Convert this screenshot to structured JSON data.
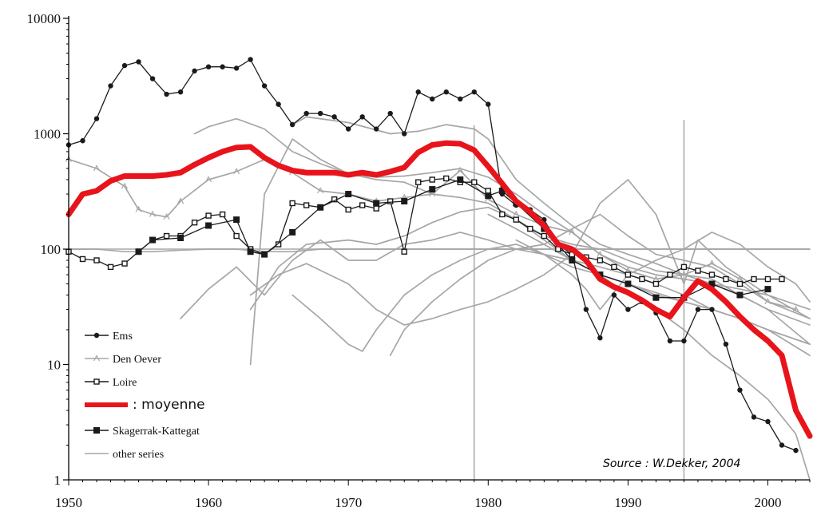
{
  "chart_data": {
    "type": "line",
    "x_scale": "linear",
    "y_scale": "log",
    "xlim": [
      1950,
      2003
    ],
    "ylim": [
      1,
      10000
    ],
    "x_ticks": [
      "1950",
      "1960",
      "1970",
      "1980",
      "1990",
      "2000"
    ],
    "y_ticks": [
      "1",
      "10",
      "100",
      "1000",
      "10000"
    ],
    "reference_lines": {
      "horizontal_y": 100,
      "vertical_x": [
        1979,
        1994
      ]
    },
    "colors": {
      "mean": "#e8141b",
      "grey": "#a6a6a6",
      "dark": "#1a1a1a",
      "axis": "#000000"
    },
    "source": "Source : W.Dekker, 2004",
    "legend": [
      {
        "label": "Ems",
        "marker": "dot",
        "style": "dark"
      },
      {
        "label": "Den Oever",
        "marker": "triangle",
        "style": "grey"
      },
      {
        "label": "Loire",
        "marker": "open-square",
        "style": "dark"
      },
      {
        "label": ": moyenne",
        "marker": "none",
        "style": "mean"
      },
      {
        "label": "Skagerrak-Kattegat",
        "marker": "filled-square",
        "style": "dark"
      },
      {
        "label": "other series",
        "marker": "none",
        "style": "grey"
      }
    ],
    "series": [
      {
        "name": "Ems",
        "marker": "dot",
        "x": [
          1950,
          1951,
          1952,
          1953,
          1954,
          1955,
          1956,
          1957,
          1958,
          1959,
          1960,
          1961,
          1962,
          1963,
          1964,
          1965,
          1966,
          1967,
          1968,
          1969,
          1970,
          1971,
          1972,
          1973,
          1974,
          1975,
          1976,
          1977,
          1978,
          1979,
          1980,
          1981,
          1982,
          1983,
          1984,
          1985,
          1986,
          1987,
          1988,
          1989,
          1990,
          1991,
          1992,
          1993,
          1994,
          1995,
          1996,
          1997,
          1998,
          1999,
          2000,
          2001,
          2002
        ],
        "y": [
          800,
          870,
          1350,
          2600,
          3900,
          4200,
          3000,
          2200,
          2300,
          3500,
          3800,
          3800,
          3700,
          4400,
          2600,
          1800,
          1200,
          1500,
          1500,
          1400,
          1100,
          1400,
          1100,
          1500,
          1000,
          2300,
          2000,
          2300,
          2000,
          2300,
          1800,
          300,
          240,
          220,
          180,
          110,
          90,
          30,
          17,
          40,
          30,
          35,
          28,
          16,
          16,
          30,
          30,
          15,
          6,
          3.5,
          3.2,
          2,
          1.8
        ]
      },
      {
        "name": "Den Oever",
        "marker": "triangle",
        "x": [
          1950,
          1952,
          1954,
          1955,
          1956,
          1957,
          1958,
          1960,
          1962,
          1964,
          1966,
          1968,
          1970,
          1972,
          1974,
          1976,
          1978,
          1980,
          1982,
          1984,
          1986,
          1988,
          1990,
          1992,
          1994,
          1996,
          1998,
          2000,
          2002
        ],
        "y": [
          600,
          500,
          350,
          220,
          200,
          190,
          260,
          400,
          470,
          600,
          460,
          320,
          300,
          260,
          280,
          300,
          480,
          270,
          200,
          160,
          140,
          90,
          65,
          55,
          60,
          75,
          55,
          35,
          30
        ]
      },
      {
        "name": "Loire",
        "marker": "open-square",
        "x": [
          1950,
          1951,
          1952,
          1953,
          1954,
          1955,
          1956,
          1957,
          1958,
          1959,
          1960,
          1961,
          1962,
          1963,
          1964,
          1965,
          1966,
          1967,
          1968,
          1969,
          1970,
          1971,
          1972,
          1973,
          1974,
          1975,
          1976,
          1977,
          1978,
          1979,
          1980,
          1981,
          1982,
          1983,
          1984,
          1985,
          1986,
          1987,
          1988,
          1989,
          1990,
          1991,
          1992,
          1993,
          1994,
          1995,
          1996,
          1997,
          1998,
          1999,
          2000,
          2001
        ],
        "y": [
          95,
          82,
          80,
          70,
          75,
          95,
          120,
          130,
          130,
          170,
          195,
          200,
          130,
          100,
          90,
          110,
          250,
          240,
          230,
          270,
          220,
          240,
          225,
          260,
          95,
          380,
          400,
          410,
          380,
          380,
          320,
          200,
          180,
          150,
          130,
          100,
          90,
          85,
          80,
          70,
          60,
          55,
          50,
          60,
          70,
          65,
          60,
          55,
          50,
          55,
          55,
          55
        ]
      },
      {
        "name": "moyenne",
        "marker": "none",
        "x": [
          1950,
          1951,
          1952,
          1953,
          1954,
          1955,
          1956,
          1957,
          1958,
          1959,
          1960,
          1961,
          1962,
          1963,
          1964,
          1965,
          1966,
          1967,
          1968,
          1969,
          1970,
          1971,
          1972,
          1973,
          1974,
          1975,
          1976,
          1977,
          1978,
          1979,
          1980,
          1981,
          1982,
          1983,
          1984,
          1985,
          1986,
          1987,
          1988,
          1989,
          1990,
          1991,
          1992,
          1993,
          1994,
          1995,
          1996,
          1997,
          1998,
          1999,
          2000,
          2001,
          2002,
          2003
        ],
        "y": [
          200,
          300,
          320,
          390,
          430,
          430,
          430,
          440,
          460,
          540,
          620,
          700,
          760,
          770,
          620,
          530,
          480,
          460,
          460,
          460,
          440,
          460,
          440,
          470,
          510,
          690,
          800,
          830,
          820,
          720,
          520,
          370,
          260,
          210,
          160,
          110,
          100,
          80,
          55,
          47,
          42,
          36,
          30,
          26,
          38,
          53,
          45,
          35,
          26,
          20,
          16,
          12,
          4,
          2.4
        ]
      },
      {
        "name": "Skagerrak-Kattegat",
        "marker": "filled-square",
        "x": [
          1955,
          1956,
          1958,
          1960,
          1962,
          1963,
          1964,
          1966,
          1968,
          1970,
          1972,
          1974,
          1976,
          1978,
          1980,
          1981,
          1982,
          1984,
          1986,
          1988,
          1990,
          1992,
          1994,
          1996,
          1998,
          2000
        ],
        "y": [
          95,
          120,
          125,
          160,
          180,
          95,
          90,
          140,
          230,
          300,
          250,
          260,
          330,
          400,
          290,
          320,
          250,
          150,
          80,
          60,
          50,
          38,
          38,
          50,
          40,
          45
        ]
      },
      {
        "name": "other series 1",
        "marker": "none",
        "x": [
          1959,
          1960,
          1962,
          1964,
          1966,
          1968,
          1970,
          1972,
          1974,
          1976,
          1978,
          1980,
          1982,
          1984,
          1986,
          1988,
          1990,
          1992,
          1994,
          1996,
          1998,
          2000,
          2003
        ],
        "y": [
          1000,
          1150,
          1350,
          1100,
          700,
          550,
          450,
          400,
          380,
          300,
          280,
          250,
          180,
          130,
          110,
          100,
          80,
          65,
          60,
          55,
          40,
          30,
          22
        ]
      },
      {
        "name": "other series 2",
        "marker": "none",
        "x": [
          1966,
          1967,
          1970,
          1973,
          1975,
          1977,
          1979,
          1980,
          1982,
          1984,
          1986,
          1988,
          1990,
          1992,
          1994,
          1996,
          1998,
          2000,
          2003
        ],
        "y": [
          1200,
          1400,
          1250,
          1000,
          1050,
          1200,
          1100,
          900,
          400,
          250,
          160,
          110,
          90,
          75,
          60,
          50,
          45,
          40,
          25
        ]
      },
      {
        "name": "other series 3",
        "marker": "none",
        "x": [
          1963,
          1964,
          1966,
          1968,
          1970,
          1972,
          1974,
          1976,
          1978,
          1980,
          1982,
          1984,
          1986,
          1988,
          1990,
          1992,
          1994,
          1996,
          1998,
          2000,
          2003
        ],
        "y": [
          10,
          300,
          900,
          600,
          450,
          420,
          430,
          460,
          500,
          420,
          300,
          200,
          140,
          90,
          70,
          60,
          55,
          50,
          40,
          30,
          15
        ]
      },
      {
        "name": "other series 4",
        "marker": "none",
        "x": [
          1963,
          1964,
          1965,
          1967,
          1970,
          1972,
          1974,
          1976,
          1978,
          1980,
          1982,
          1984,
          1986,
          1988,
          1990,
          1992,
          1994,
          1996,
          1998,
          2000,
          2003
        ],
        "y": [
          30,
          45,
          70,
          110,
          120,
          110,
          130,
          170,
          210,
          230,
          180,
          120,
          80,
          60,
          50,
          42,
          35,
          30,
          25,
          20,
          15
        ]
      },
      {
        "name": "other series 5",
        "marker": "none",
        "x": [
          1963,
          1965,
          1967,
          1970,
          1972,
          1974,
          1976,
          1978,
          1980,
          1982,
          1984,
          1986,
          1988,
          1990,
          1992,
          1994,
          1995,
          1997,
          2000,
          2003
        ],
        "y": [
          40,
          60,
          75,
          50,
          30,
          22,
          25,
          30,
          35,
          45,
          60,
          90,
          250,
          400,
          200,
          50,
          120,
          70,
          40,
          30
        ]
      },
      {
        "name": "other series 6",
        "marker": "none",
        "x": [
          1958,
          1960,
          1962,
          1964,
          1966,
          1968,
          1970,
          1972,
          1974,
          1976,
          1978,
          1980,
          1982,
          1984,
          1986,
          1988,
          1990,
          1992,
          1994,
          1996,
          1998,
          2000,
          2003
        ],
        "y": [
          25,
          45,
          70,
          40,
          80,
          120,
          80,
          80,
          110,
          120,
          140,
          120,
          100,
          90,
          70,
          60,
          50,
          40,
          35,
          30,
          25,
          20,
          12
        ]
      },
      {
        "name": "other series 7",
        "marker": "none",
        "x": [
          1966,
          1968,
          1970,
          1971,
          1972,
          1974,
          1976,
          1978,
          1980,
          1982,
          1984,
          1986,
          1988,
          1990,
          1992,
          1994,
          1996,
          1998,
          2000,
          2003
        ],
        "y": [
          40,
          25,
          15,
          13,
          20,
          40,
          60,
          80,
          100,
          110,
          90,
          80,
          70,
          60,
          50,
          40,
          30,
          25,
          20,
          15
        ]
      },
      {
        "name": "other series 8",
        "marker": "none",
        "x": [
          1973,
          1974,
          1976,
          1978,
          1980,
          1982,
          1984,
          1986,
          1988,
          1990,
          1992,
          1994,
          1996,
          1998,
          2000,
          2003
        ],
        "y": [
          12,
          20,
          35,
          55,
          80,
          100,
          110,
          150,
          200,
          130,
          90,
          80,
          70,
          50,
          35,
          25
        ]
      },
      {
        "name": "other series 9",
        "marker": "none",
        "x": [
          1982,
          1984,
          1986,
          1987,
          1988,
          1990,
          1992,
          1994,
          1996,
          1998,
          2000,
          2002,
          2003
        ],
        "y": [
          120,
          90,
          60,
          45,
          30,
          60,
          80,
          100,
          140,
          110,
          70,
          50,
          35
        ]
      },
      {
        "name": "other series 10",
        "marker": "none",
        "x": [
          1980,
          1982,
          1984,
          1986,
          1988,
          1990,
          1992,
          1994,
          1996,
          1998,
          2000,
          2002,
          2003
        ],
        "y": [
          200,
          150,
          110,
          80,
          60,
          40,
          30,
          20,
          12,
          8,
          5,
          2.5,
          1
        ]
      },
      {
        "name": "other series 11",
        "marker": "none",
        "x": [
          1950,
          1952,
          1954,
          1956,
          1958,
          1960,
          1962,
          1964,
          1966,
          1968,
          1970,
          1972,
          1974,
          1976,
          1978,
          1980,
          1982,
          1984,
          1986,
          1988,
          1990,
          1992,
          1994,
          1996,
          1998,
          2000,
          2003
        ],
        "y": [
          100,
          100,
          95,
          95,
          98,
          100,
          100,
          95,
          95,
          100,
          100,
          100,
          100,
          100,
          100,
          100,
          100,
          100,
          100,
          100,
          100,
          100,
          100,
          100,
          100,
          100,
          100
        ]
      }
    ]
  }
}
